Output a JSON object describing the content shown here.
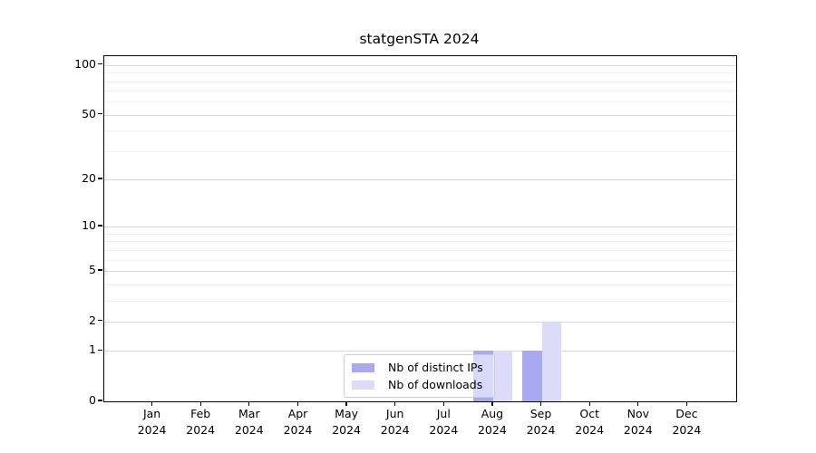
{
  "title": "statgenSTA 2024",
  "chart_data": {
    "type": "bar",
    "categories": [
      "Jan",
      "Feb",
      "Mar",
      "Apr",
      "May",
      "Jun",
      "Jul",
      "Aug",
      "Sep",
      "Oct",
      "Nov",
      "Dec"
    ],
    "category_year": "2024",
    "series": [
      {
        "name": "Nb of distinct IPs",
        "color": "#a9a9f1",
        "values": [
          0,
          0,
          0,
          0,
          0,
          0,
          0,
          1,
          1,
          0,
          0,
          0
        ]
      },
      {
        "name": "Nb of downloads",
        "color": "#dcdcf8",
        "values": [
          0,
          0,
          0,
          0,
          0,
          0,
          0,
          1,
          2,
          0,
          0,
          0
        ]
      }
    ],
    "yscale": "log1p",
    "yticks": [
      0,
      1,
      2,
      5,
      10,
      20,
      50,
      100
    ],
    "yticks_minor": [
      3,
      4,
      6,
      7,
      8,
      9,
      30,
      40,
      60,
      70,
      80,
      90
    ],
    "ylim": [
      0,
      112
    ],
    "xlim": [
      -1,
      12
    ],
    "grid": "horizontal major+minor",
    "legend_location": "inside lower-center",
    "colors": {
      "grid_major": "#d9d9d9",
      "grid_minor": "#f0f0f0",
      "axis": "#000000",
      "legend_border": "#cccccc"
    }
  }
}
